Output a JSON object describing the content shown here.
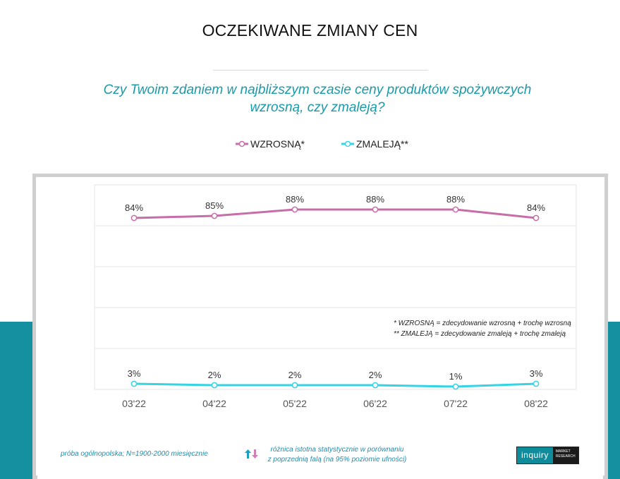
{
  "title": "OCZEKIWANE ZMIANY CEN",
  "question": "Czy Twoim zdaniem w najbliższym czasie ceny produktów spożywczych wzrosną, czy zmaleją?",
  "legend": [
    {
      "label": "WZROSNĄ*",
      "color": "#c66ea8"
    },
    {
      "label": "ZMALEJĄ**",
      "color": "#35d3e3"
    }
  ],
  "footnotes": [
    "* WZROSNĄ = zdecydowanie wzrosną + trochę wzrosną",
    "** ZMALEJĄ = zdecydowanie zmaleją + trochę zmaleją"
  ],
  "bottom": {
    "sample_note": "próba ogólnopolska; N=1900-2000 miesięcznie",
    "significance_line1": "różnica istotna statystycznie w porównaniu",
    "significance_line2": "z poprzednią falą (na 95% poziomie ufności)",
    "logo_main": "inquiry",
    "logo_sub_line1": "MARKET",
    "logo_sub_line2": "RESEARCH"
  },
  "chart_data": {
    "type": "line",
    "categories": [
      "03'22",
      "04'22",
      "05'22",
      "06'22",
      "07'22",
      "08'22"
    ],
    "series": [
      {
        "name": "WZROSNĄ*",
        "values": [
          84,
          85,
          88,
          88,
          88,
          84
        ],
        "labels": [
          "84%",
          "85%",
          "88%",
          "88%",
          "88%",
          "84%"
        ],
        "color": "#c66ea8"
      },
      {
        "name": "ZMALEJĄ**",
        "values": [
          3,
          2,
          2,
          2,
          1,
          3
        ],
        "labels": [
          "3%",
          "2%",
          "2%",
          "2%",
          "1%",
          "3%"
        ],
        "color": "#35d3e3"
      }
    ],
    "ylim": [
      0,
      100
    ],
    "grid": true
  }
}
